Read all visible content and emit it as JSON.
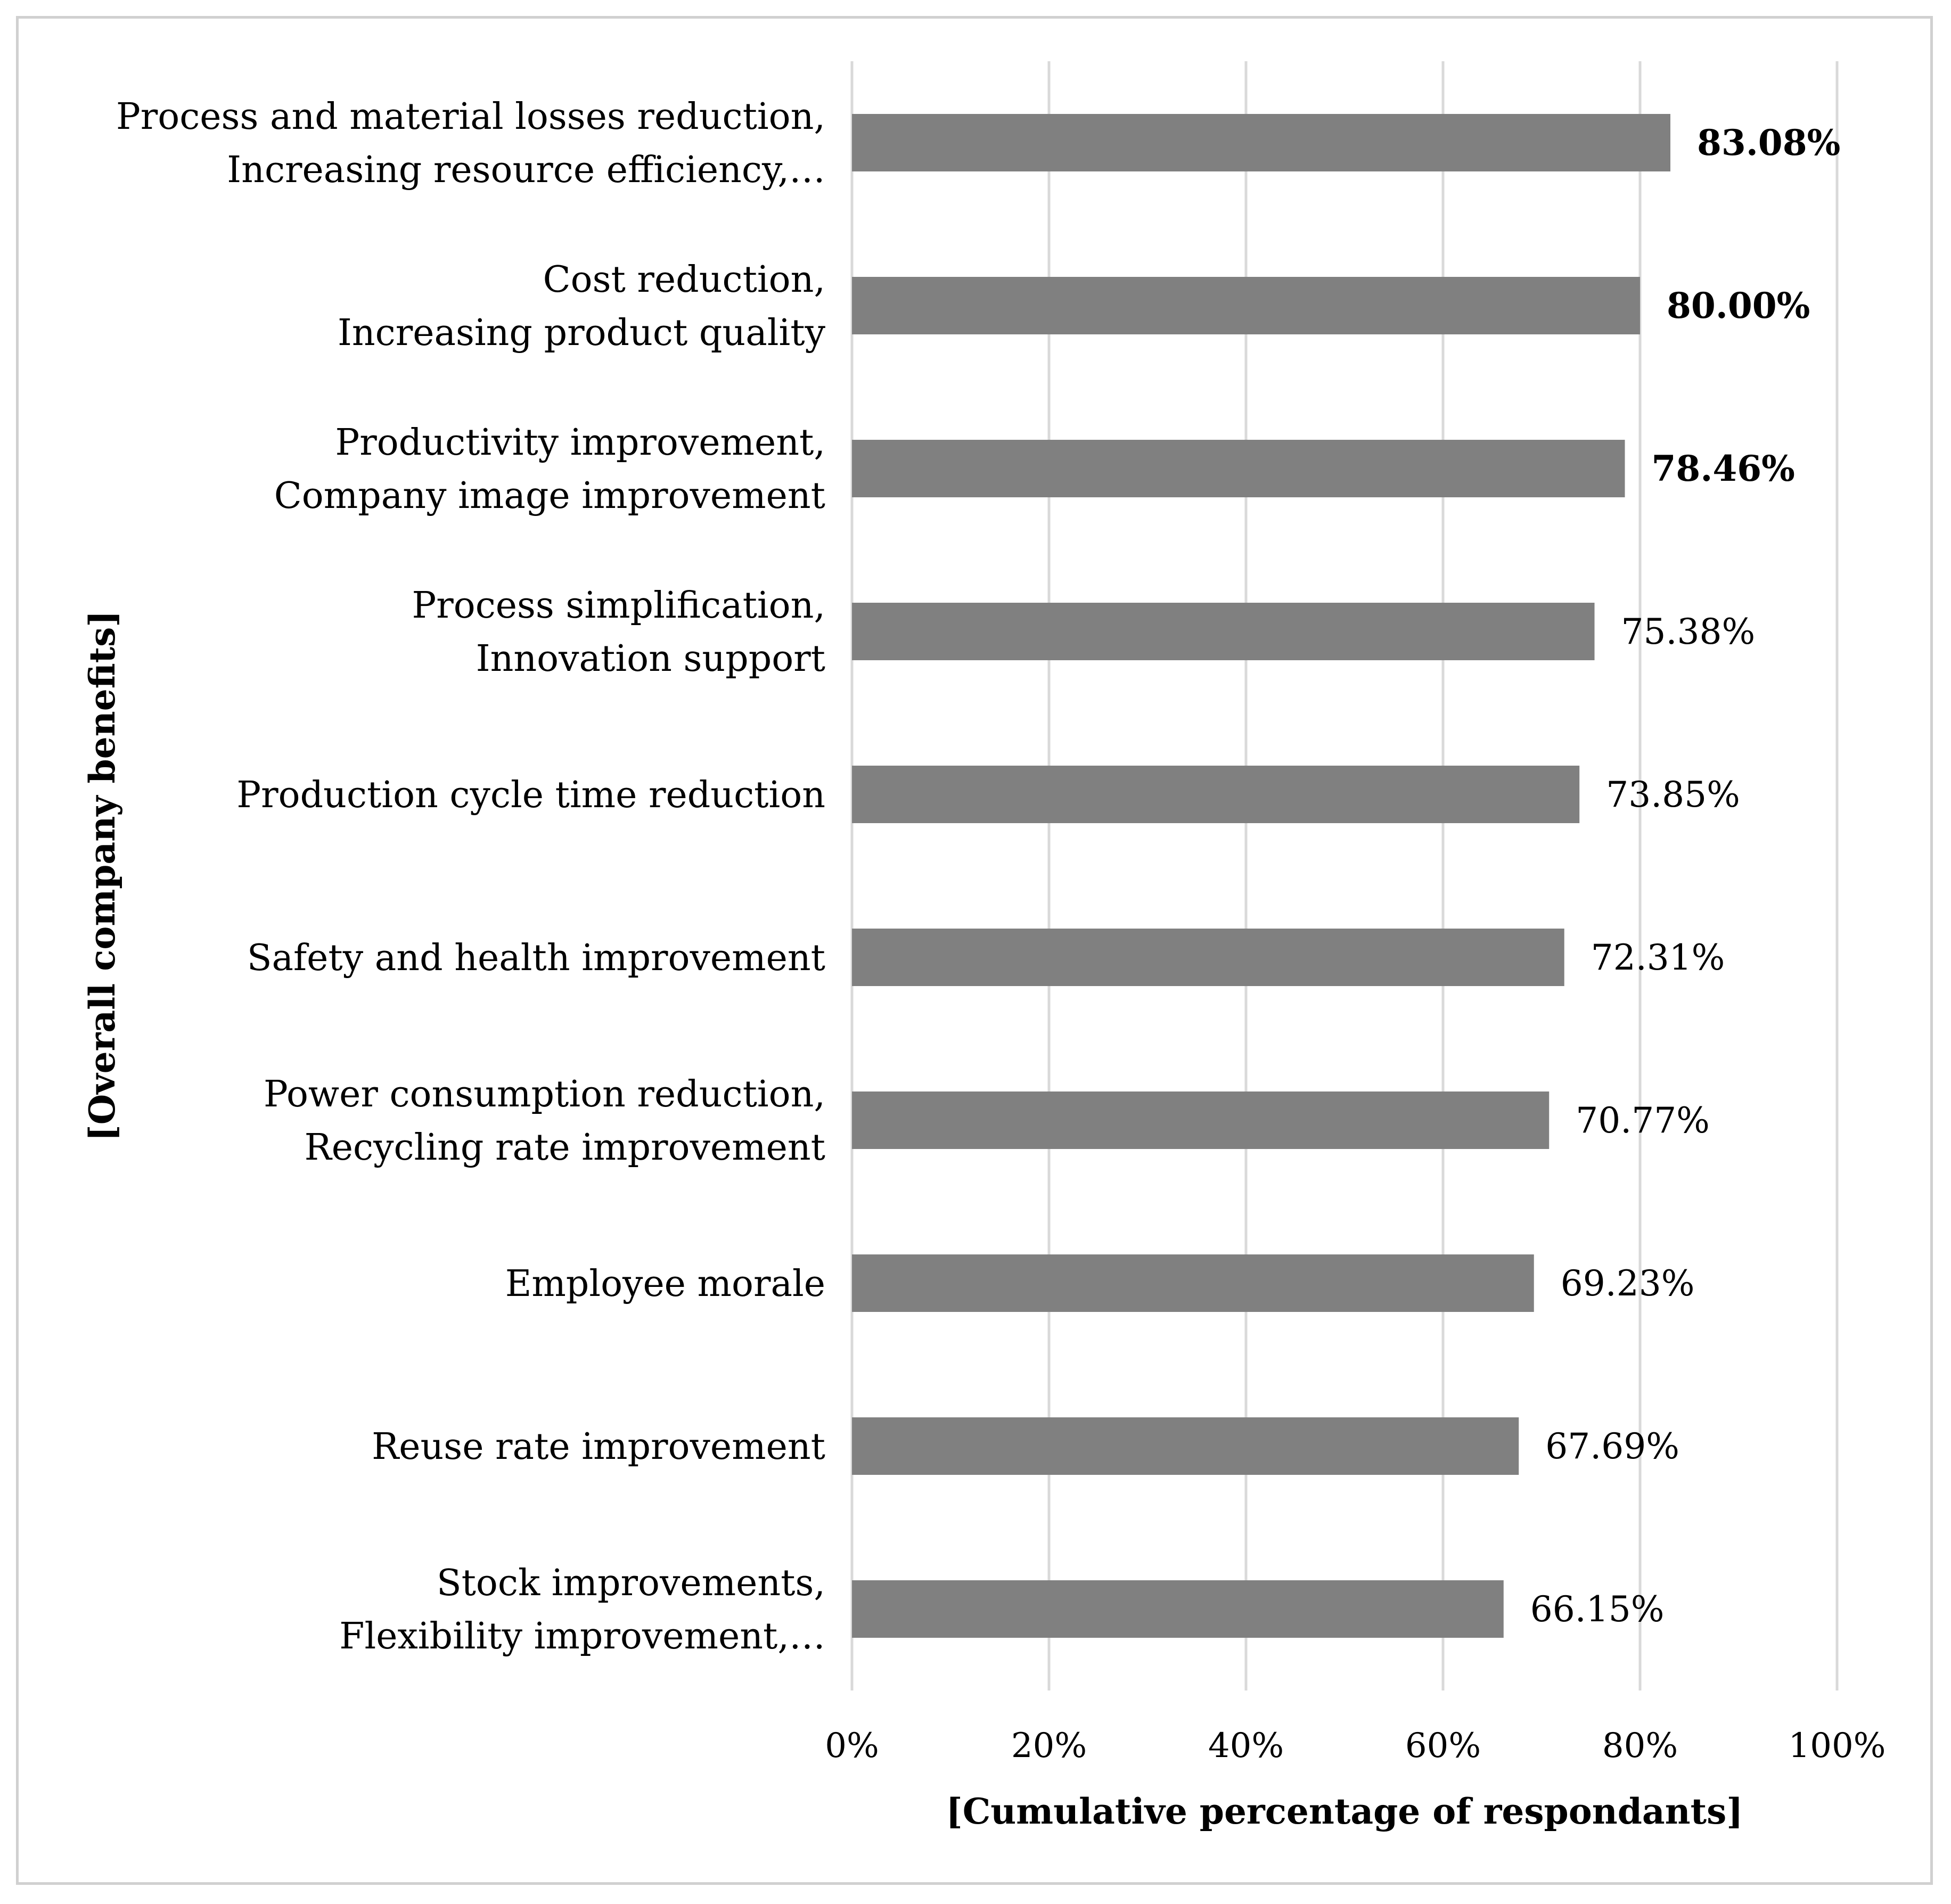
{
  "chart_data": {
    "type": "bar",
    "orientation": "horizontal",
    "title": "",
    "xlabel": "[Cumulative percentage of respondants]",
    "ylabel": "[Overall company benefits]",
    "xlim": [
      0,
      100
    ],
    "x_ticks": [
      0,
      20,
      40,
      60,
      80,
      100
    ],
    "x_tick_labels": [
      "0%",
      "20%",
      "40%",
      "60%",
      "80%",
      "100%"
    ],
    "grid": true,
    "legend": "none",
    "bar_color": "#808080",
    "grid_color": "#d9d9d9",
    "categories": [
      [
        "Process and material losses reduction,",
        "Increasing resource efficiency,…"
      ],
      [
        "Cost reduction,",
        "Increasing product quality"
      ],
      [
        "Productivity improvement,",
        "Company image improvement"
      ],
      [
        "Process simplification,",
        "Innovation support"
      ],
      [
        "Production cycle time reduction"
      ],
      [
        "Safety and health improvement"
      ],
      [
        "Power consumption reduction,",
        "Recycling rate improvement"
      ],
      [
        "Employee morale"
      ],
      [
        "Reuse rate improvement"
      ],
      [
        "Stock improvements,",
        "Flexibility improvement,…"
      ]
    ],
    "values": [
      83.08,
      80.0,
      78.46,
      75.38,
      73.85,
      72.31,
      70.77,
      69.23,
      67.69,
      66.15
    ],
    "value_labels": [
      "83.08%",
      "80.00%",
      "78.46%",
      "75.38%",
      "73.85%",
      "72.31%",
      "70.77%",
      "69.23%",
      "67.69%",
      "66.15%"
    ],
    "bold_labels": [
      true,
      true,
      true,
      false,
      false,
      false,
      false,
      false,
      false,
      false
    ]
  }
}
